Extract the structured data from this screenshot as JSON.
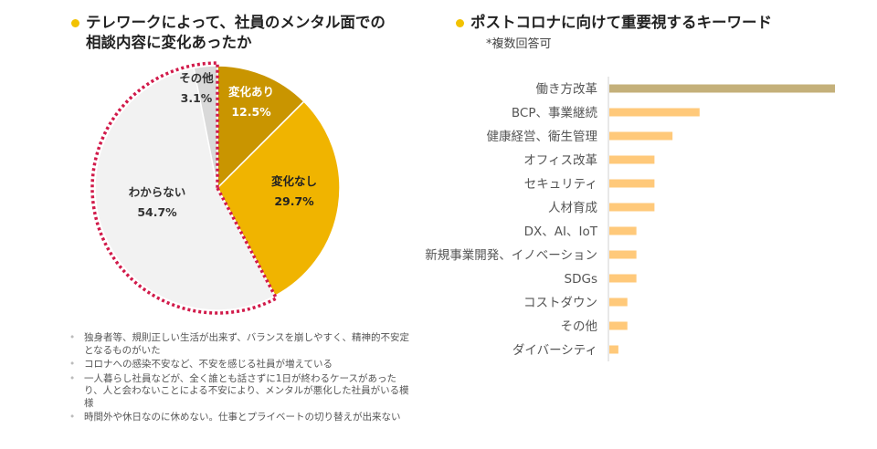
{
  "left": {
    "title_line1": "テレワークによって、社員のメンタル面での",
    "title_line2": "相談内容に変化あったか"
  },
  "right": {
    "title": "ポストコロナに向けて重要視するキーワード",
    "note": "*複数回答可"
  },
  "notes": [
    "独身者等、規則正しい生活が出来ず、バランスを崩しやすく、精神的不安定となるものがいた",
    "コロナへの感染不安など、不安を感じる社員が増えている",
    "一人暮らし社員などが、全く誰とも話さずに1日が終わるケースがあったり、人と会わないことによる不安により、メンタルが悪化した社員がいる模様",
    "時間外や休日なのに休めない。仕事とプライベートの切り替えが出来ない"
  ],
  "colors": {
    "accent": "#f2c200",
    "pie_change": "#c99500",
    "pie_nochange": "#f0b400",
    "pie_unknown": "#f2f2f2",
    "pie_other": "#d9d9d9",
    "dotted_border": "#d11a4a",
    "bar_top": "#c4b07a",
    "bar": "#ffc97a"
  },
  "chart_data": [
    {
      "type": "pie",
      "slices": [
        {
          "label": "変化あり",
          "value": 12.5,
          "display": "12.5%",
          "color": "#c99500"
        },
        {
          "label": "変化なし",
          "value": 29.7,
          "display": "29.7%",
          "color": "#f0b400"
        },
        {
          "label": "わからない",
          "value": 54.7,
          "display": "54.7%",
          "color": "#f2f2f2"
        },
        {
          "label": "その他",
          "value": 3.1,
          "display": "3.1%",
          "color": "#d9d9d9"
        }
      ],
      "highlight": "わからない and その他 outlined with dotted red border"
    },
    {
      "type": "bar",
      "orientation": "horizontal",
      "categories": [
        "働き方改革",
        "BCP、事業継続",
        "健康経営、衛生管理",
        "オフィス改革",
        "セキュリティ",
        "人材育成",
        "DX、AI、IoT",
        "新規事業開発、イノベーション",
        "SDGs",
        "コストダウン",
        "その他",
        "ダイバーシティ"
      ],
      "values": [
        25,
        10,
        7,
        5,
        5,
        5,
        3,
        3,
        3,
        2,
        2,
        1
      ],
      "xlim": [
        0,
        25
      ]
    }
  ]
}
